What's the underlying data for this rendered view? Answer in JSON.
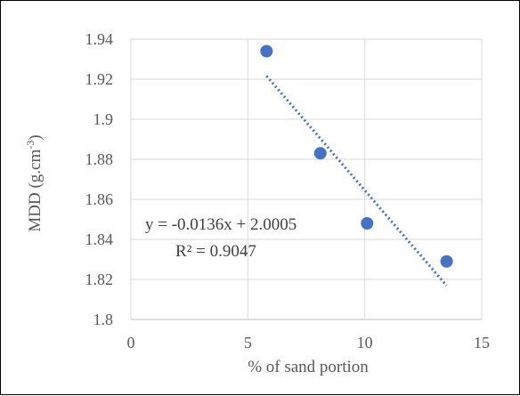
{
  "chart_data": {
    "type": "scatter",
    "title": "",
    "xlabel": "% of sand portion",
    "ylabel_main": "MDD (g.cm",
    "ylabel_sup": "-3",
    "ylabel_end": ")",
    "xlim": [
      0,
      15
    ],
    "ylim": [
      1.8,
      1.94
    ],
    "x_ticks": [
      0,
      5,
      10,
      15
    ],
    "x_tick_labels": [
      "0",
      "5",
      "10",
      "15"
    ],
    "y_ticks": [
      1.8,
      1.82,
      1.84,
      1.86,
      1.88,
      1.9,
      1.92,
      1.94
    ],
    "y_tick_labels": [
      "1.8",
      "1.82",
      "1.84",
      "1.86",
      "1.88",
      "1.9",
      "1.92",
      "1.94"
    ],
    "grid": true,
    "series": [
      {
        "x": [
          5.8,
          8.1,
          10.1,
          13.5
        ],
        "y": [
          1.934,
          1.883,
          1.848,
          1.829
        ],
        "color": "#4472c4"
      }
    ],
    "trendline": {
      "slope": -0.0136,
      "intercept": 2.0005,
      "x_range": [
        5.8,
        13.5
      ],
      "style": "dotted",
      "color": "#4472c4"
    },
    "annotations": {
      "equation": "y = -0.0136x + 2.0005",
      "r2": "R² = 0.9047"
    }
  }
}
